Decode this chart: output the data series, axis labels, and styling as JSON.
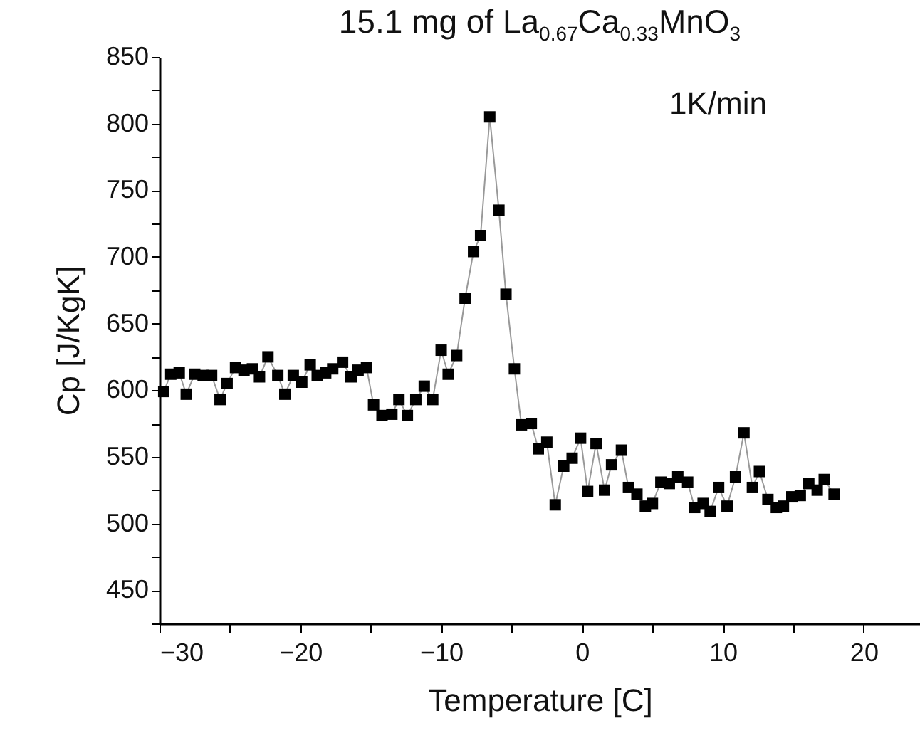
{
  "chart_data": {
    "type": "line",
    "title": "15.1 mg of La$_{0.67}$Ca$_{0.33}$MnO$_{3}$",
    "xlabel": "Temperature [C]",
    "ylabel": "Cp [J/KgK]",
    "annotations": [
      "1K/min"
    ],
    "marker": "square",
    "grid": false,
    "xlim": [
      -30,
      24
    ],
    "ylim": [
      425,
      850
    ],
    "xticks": [
      -30,
      {
        "value": -25,
        "label": null
      },
      -20,
      {
        "value": -15,
        "label": null
      },
      -10,
      {
        "value": -5,
        "label": null
      },
      0,
      {
        "value": 5,
        "label": null
      },
      10,
      {
        "value": 15,
        "label": null
      },
      20
    ],
    "yticks": [
      {
        "value": 425,
        "label": null
      },
      450,
      {
        "value": 475,
        "label": null
      },
      500,
      {
        "value": 525,
        "label": null
      },
      550,
      {
        "value": 575,
        "label": null
      },
      600,
      {
        "value": 625,
        "label": null
      },
      650,
      {
        "value": 675,
        "label": null
      },
      700,
      {
        "value": 725,
        "label": null
      },
      750,
      {
        "value": 775,
        "label": null
      },
      800,
      {
        "value": 825,
        "label": null
      },
      850
    ],
    "series": [
      {
        "color": "#000000",
        "x": [
          -29.7,
          -29.2,
          -28.6,
          -28.1,
          -27.5,
          -26.9,
          -26.3,
          -25.7,
          -25.2,
          -24.6,
          -24.0,
          -23.4,
          -22.9,
          -22.3,
          -21.6,
          -21.1,
          -20.5,
          -19.9,
          -19.3,
          -18.8,
          -18.2,
          -17.7,
          -17.0,
          -16.4,
          -15.9,
          -15.3,
          -14.8,
          -14.2,
          -13.5,
          -13.0,
          -12.4,
          -11.8,
          -11.2,
          -10.6,
          -10.0,
          -9.5,
          -8.9,
          -8.3,
          -7.7,
          -7.2,
          -6.55,
          -5.9,
          -5.4,
          -4.8,
          -4.3,
          -3.6,
          -3.1,
          -2.5,
          -1.9,
          -1.3,
          -0.7,
          -0.1,
          0.4,
          1.0,
          1.6,
          2.1,
          2.8,
          3.3,
          3.9,
          4.5,
          5.0,
          5.6,
          6.2,
          6.8,
          7.5,
          8.0,
          8.6,
          9.1,
          9.7,
          10.3,
          10.9,
          11.5,
          12.1,
          12.6,
          13.2,
          13.8,
          14.3,
          14.9,
          15.5,
          16.1,
          16.7,
          17.2,
          17.9
        ],
        "values": [
          599,
          612,
          613,
          597,
          612,
          611,
          611,
          593,
          605,
          617,
          615,
          616,
          610,
          625,
          611,
          597,
          611,
          606,
          619,
          611,
          613,
          616,
          621,
          610,
          615,
          617,
          589,
          581,
          582,
          593,
          581,
          593,
          603,
          593,
          630,
          612,
          626,
          669,
          704,
          716,
          805,
          735,
          672,
          616,
          574,
          575,
          556,
          561,
          514,
          543,
          549,
          564,
          524,
          560,
          525,
          544,
          555,
          527,
          522,
          513,
          515,
          531,
          530,
          535,
          531,
          512,
          515,
          509,
          527,
          513,
          535,
          568,
          527,
          539,
          518,
          512,
          513,
          520,
          521,
          530,
          525,
          533,
          522
        ]
      }
    ]
  }
}
